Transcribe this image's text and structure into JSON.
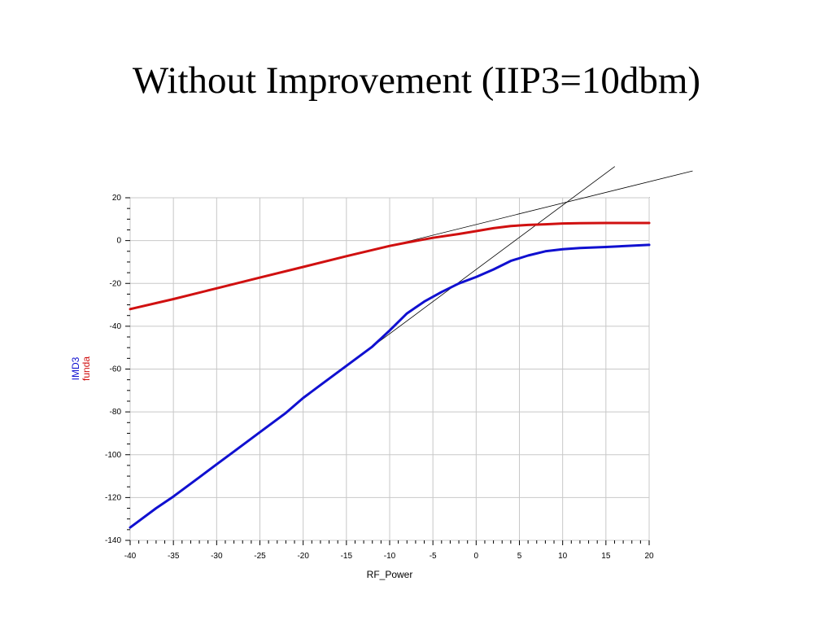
{
  "page": {
    "title": "Without Improvement (IIP3=10dbm)"
  },
  "chart_data": {
    "type": "line",
    "title": "Without Improvement (IIP3=10dbm)",
    "xlabel": "RF_Power",
    "ylabel": [
      "IMD3",
      "funda"
    ],
    "xlim": [
      -40,
      20
    ],
    "ylim": [
      -140,
      20
    ],
    "xticks": [
      -40,
      -35,
      -30,
      -25,
      -20,
      -15,
      -10,
      -5,
      0,
      5,
      10,
      15,
      20
    ],
    "yticks": [
      20,
      0,
      -20,
      -40,
      -60,
      -80,
      -100,
      -120,
      -140
    ],
    "grid": true,
    "colors": {
      "IMD3": "#1010d0",
      "funda": "#d01010",
      "extrapolation": "#000000"
    },
    "series": [
      {
        "name": "funda",
        "x": [
          -40,
          -35,
          -30,
          -25,
          -20,
          -15,
          -10,
          -8,
          -5,
          -2,
          0,
          2,
          4,
          6,
          8,
          10,
          12,
          15,
          20
        ],
        "y": [
          -32,
          -27.3,
          -22.3,
          -17.3,
          -12.3,
          -7.3,
          -2.5,
          -0.9,
          1.3,
          3.1,
          4.4,
          5.8,
          6.8,
          7.3,
          7.6,
          8.0,
          8.1,
          8.2,
          8.2
        ]
      },
      {
        "name": "IMD3",
        "x": [
          -40,
          -37,
          -35,
          -32,
          -30,
          -28,
          -25,
          -22,
          -20,
          -18,
          -15,
          -12,
          -10,
          -8,
          -6,
          -4,
          -2,
          0,
          2,
          4,
          6,
          8,
          10,
          12,
          15,
          20
        ],
        "y": [
          -134,
          -125,
          -119.5,
          -110.5,
          -104.5,
          -98.5,
          -89.5,
          -80.5,
          -73.5,
          -67.5,
          -58.5,
          -49.5,
          -42,
          -34,
          -28.5,
          -24,
          -20,
          -17,
          -13.5,
          -9.5,
          -7,
          -5,
          -4,
          -3.5,
          -3,
          -2
        ]
      },
      {
        "name": "funda extrapolation",
        "x": [
          -10,
          25
        ],
        "y": [
          -2.5,
          32.5
        ]
      },
      {
        "name": "IMD3 extrapolation",
        "x": [
          -15,
          16
        ],
        "y": [
          -58.5,
          34.5
        ]
      }
    ]
  }
}
